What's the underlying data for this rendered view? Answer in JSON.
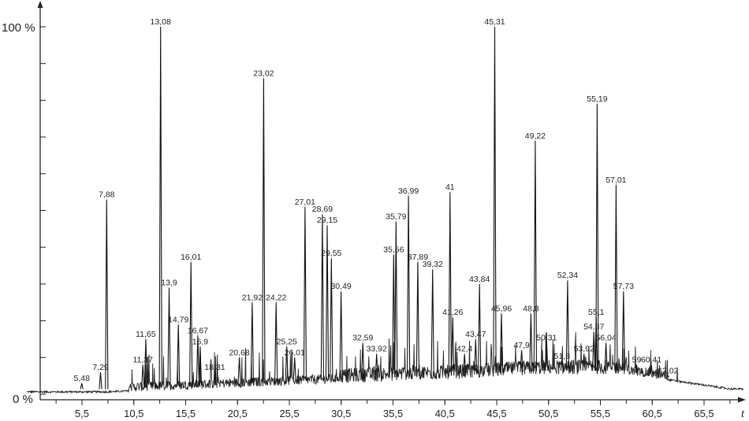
{
  "chart_data": {
    "type": "line",
    "title": "",
    "xlabel": "t",
    "ylabel": "",
    "y_top_label": "100 %",
    "y_bottom_label": "0 %",
    "xlim": [
      0.2,
      70.5
    ],
    "ylim": [
      0,
      100
    ],
    "x_ticks": [
      "5,5",
      "10,5",
      "15,5",
      "20,5",
      "25,5",
      "30,5",
      "35,5",
      "40,5",
      "45,5",
      "50,5",
      "55,5",
      "60,5",
      "65,5"
    ],
    "grid": false,
    "peaks": [
      {
        "label": "5,48",
        "x": 5.48,
        "y": 3
      },
      {
        "label": "7,29",
        "x": 7.29,
        "y": 6
      },
      {
        "label": "7,88",
        "x": 7.88,
        "y": 53
      },
      {
        "label": "11,37",
        "x": 11.37,
        "y": 8
      },
      {
        "label": "11,65",
        "x": 11.65,
        "y": 15
      },
      {
        "label": "13,08",
        "x": 13.08,
        "y": 100
      },
      {
        "label": "13,9",
        "x": 13.9,
        "y": 29
      },
      {
        "label": "14,79",
        "x": 14.79,
        "y": 19
      },
      {
        "label": "16,01",
        "x": 16.01,
        "y": 36
      },
      {
        "label": "16,67",
        "x": 16.67,
        "y": 16
      },
      {
        "label": "16,9",
        "x": 16.9,
        "y": 13
      },
      {
        "label": "18,31",
        "x": 18.31,
        "y": 6
      },
      {
        "label": "20,68",
        "x": 20.68,
        "y": 10
      },
      {
        "label": "21,92",
        "x": 21.92,
        "y": 25
      },
      {
        "label": "23,02",
        "x": 23.02,
        "y": 86
      },
      {
        "label": "24,22",
        "x": 24.22,
        "y": 25
      },
      {
        "label": "25,25",
        "x": 25.25,
        "y": 13
      },
      {
        "label": "26,01",
        "x": 26.01,
        "y": 10
      },
      {
        "label": "27,01",
        "x": 27.01,
        "y": 51
      },
      {
        "label": "28,69",
        "x": 28.69,
        "y": 49
      },
      {
        "label": "29,15",
        "x": 29.15,
        "y": 46
      },
      {
        "label": "29,55",
        "x": 29.55,
        "y": 37
      },
      {
        "label": "30,49",
        "x": 30.49,
        "y": 28
      },
      {
        "label": "32,59",
        "x": 32.59,
        "y": 14
      },
      {
        "label": "33,92",
        "x": 33.92,
        "y": 11
      },
      {
        "label": "35,56",
        "x": 35.56,
        "y": 38
      },
      {
        "label": "35,79",
        "x": 35.79,
        "y": 47
      },
      {
        "label": "36,99",
        "x": 36.99,
        "y": 54
      },
      {
        "label": "37,89",
        "x": 37.89,
        "y": 36
      },
      {
        "label": "39,32",
        "x": 39.32,
        "y": 34
      },
      {
        "label": "41",
        "x": 41.0,
        "y": 55
      },
      {
        "label": "41,26",
        "x": 41.26,
        "y": 21
      },
      {
        "label": "42,4",
        "x": 42.4,
        "y": 11
      },
      {
        "label": "43,47",
        "x": 43.47,
        "y": 15
      },
      {
        "label": "43,84",
        "x": 43.84,
        "y": 30
      },
      {
        "label": "45,31",
        "x": 45.31,
        "y": 100
      },
      {
        "label": "45,96",
        "x": 45.96,
        "y": 22
      },
      {
        "label": "47,9",
        "x": 47.9,
        "y": 12
      },
      {
        "label": "48,8",
        "x": 48.8,
        "y": 22
      },
      {
        "label": "49,22",
        "x": 49.22,
        "y": 69
      },
      {
        "label": "50,31",
        "x": 50.31,
        "y": 14
      },
      {
        "label": "51,8",
        "x": 51.8,
        "y": 9
      },
      {
        "label": "52,34",
        "x": 52.34,
        "y": 31
      },
      {
        "label": "53,92",
        "x": 53.92,
        "y": 11
      },
      {
        "label": "54,87",
        "x": 54.87,
        "y": 17
      },
      {
        "label": "55,1",
        "x": 55.1,
        "y": 21
      },
      {
        "label": "55,19",
        "x": 55.19,
        "y": 79
      },
      {
        "label": "56,04",
        "x": 56.04,
        "y": 14
      },
      {
        "label": "57,01",
        "x": 57.01,
        "y": 57
      },
      {
        "label": "57,73",
        "x": 57.73,
        "y": 28
      },
      {
        "label": "59",
        "x": 59.0,
        "y": 8
      },
      {
        "label": "60,41",
        "x": 60.41,
        "y": 8
      },
      {
        "label": "62,02",
        "x": 62.02,
        "y": 5
      }
    ]
  }
}
